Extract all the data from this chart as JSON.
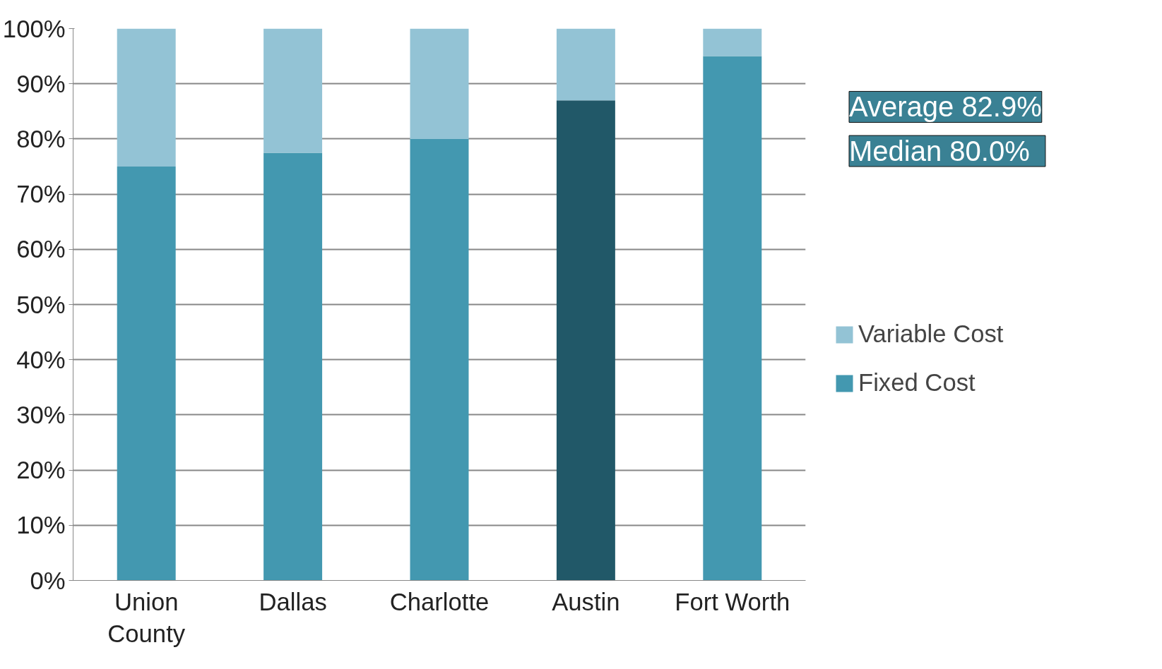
{
  "chart_data": {
    "type": "bar",
    "stacked": true,
    "categories": [
      "Union County",
      "Dallas",
      "Charlotte",
      "Austin",
      "Fort Worth"
    ],
    "series": [
      {
        "name": "Fixed Cost",
        "color": "#4398b0",
        "colors": [
          "#4398b0",
          "#4398b0",
          "#4398b0",
          "#215868",
          "#4398b0"
        ],
        "values": [
          75,
          77.5,
          80,
          87,
          95
        ]
      },
      {
        "name": "Variable Cost",
        "color": "#93c3d5",
        "values": [
          25,
          22.5,
          20,
          13,
          5
        ]
      }
    ],
    "ylim": [
      0,
      100
    ],
    "yticks": [
      {
        "value": 0,
        "label": "0%"
      },
      {
        "value": 10,
        "label": "10%"
      },
      {
        "value": 20,
        "label": "20%"
      },
      {
        "value": 30,
        "label": "30%"
      },
      {
        "value": 40,
        "label": "40%"
      },
      {
        "value": 50,
        "label": "50%"
      },
      {
        "value": 60,
        "label": "60%"
      },
      {
        "value": 70,
        "label": "70%"
      },
      {
        "value": 80,
        "label": "80%"
      },
      {
        "value": 90,
        "label": "90%"
      },
      {
        "value": 100,
        "label": "100%"
      }
    ],
    "grid": "y",
    "legend": "right",
    "annotations": [
      "Average 82.9%",
      "Median   80.0%"
    ]
  }
}
